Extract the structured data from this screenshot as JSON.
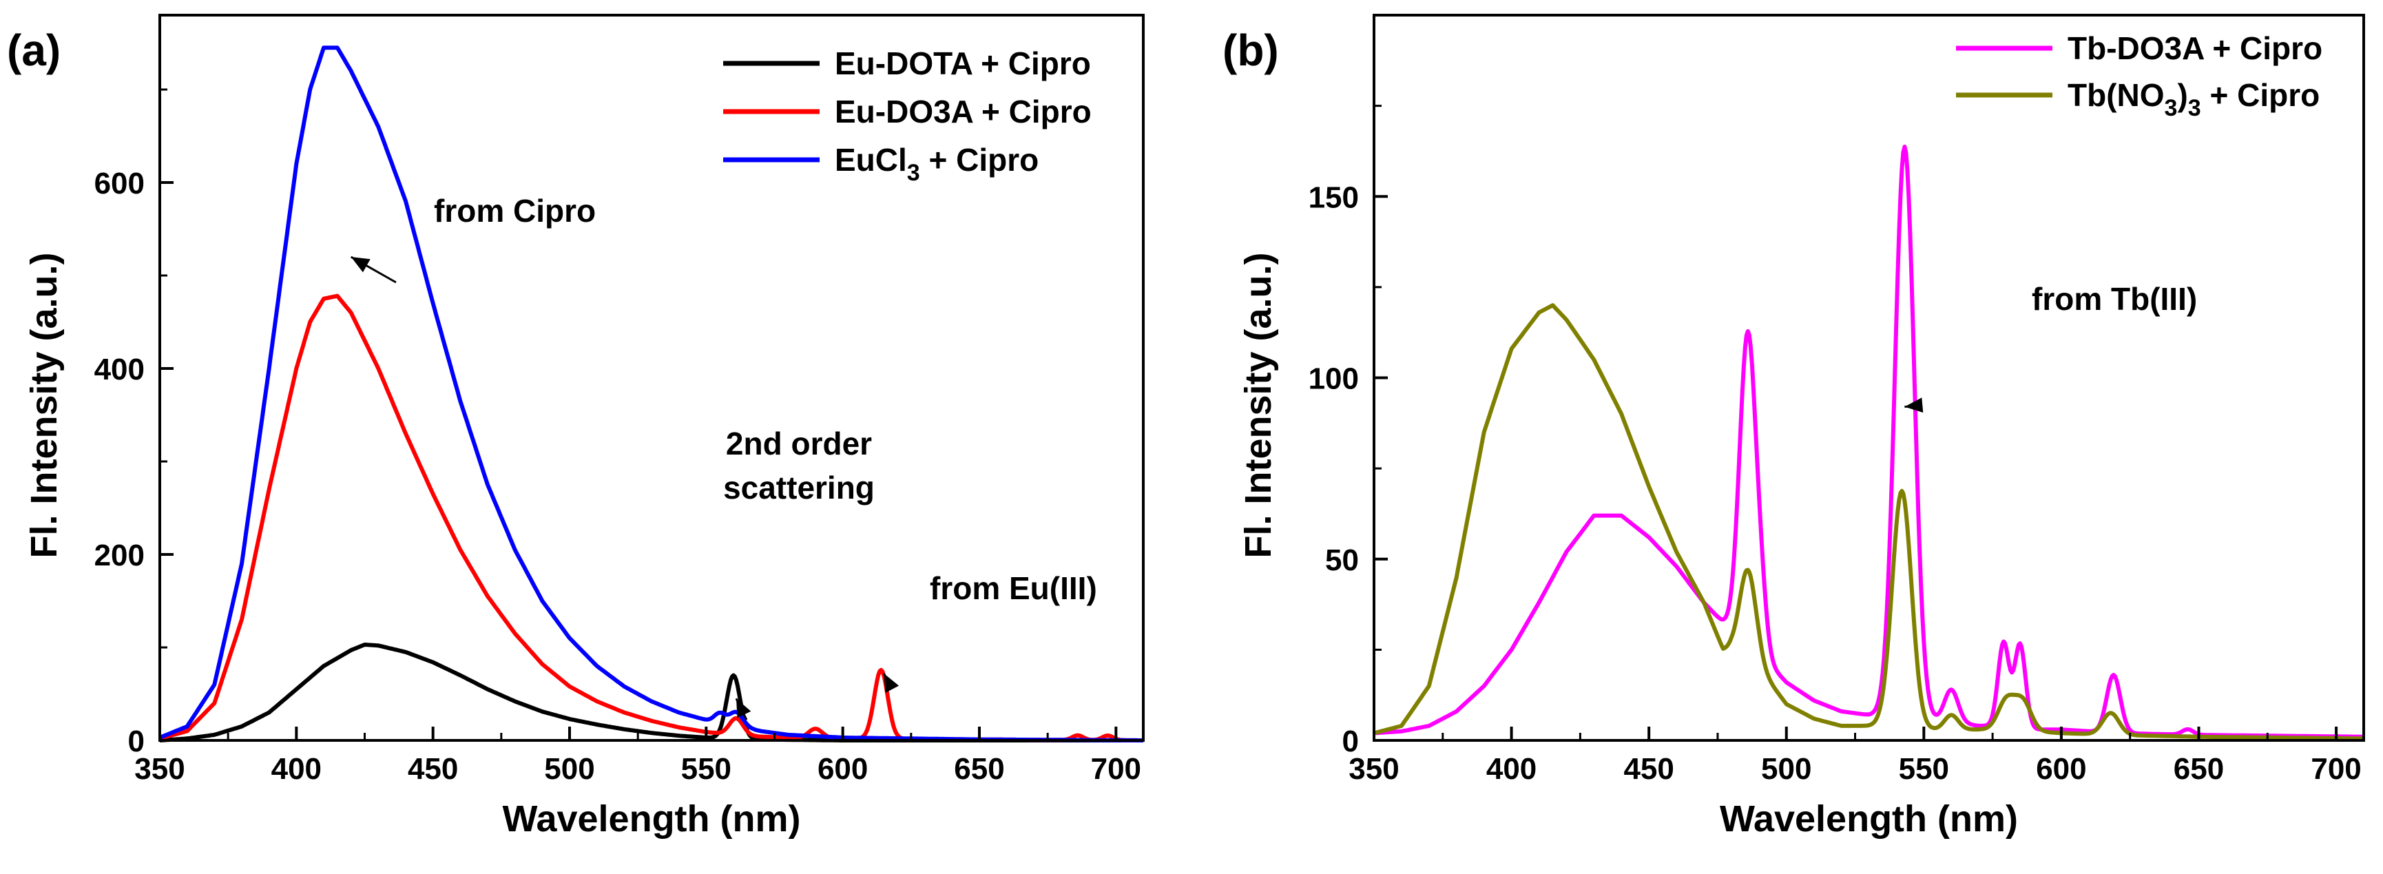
{
  "chart_data": [
    {
      "type": "line",
      "panel_label": "(a)",
      "xlabel": "Wavelength (nm)",
      "ylabel": "Fl. Intensity (a.u.)",
      "xlim": [
        350,
        710
      ],
      "ylim": [
        0,
        780
      ],
      "xticks": [
        "350",
        "400",
        "450",
        "500",
        "550",
        "600",
        "650",
        "700"
      ],
      "yticks": [
        "0",
        "200",
        "400",
        "600"
      ],
      "legend_position": "top-right",
      "legend": [
        {
          "text": "Eu-DOTA + Cipro",
          "color": "#000000"
        },
        {
          "text": "Eu-DO3A + Cipro",
          "color": "#ff0000"
        },
        {
          "text": "EuCl",
          "sub": "3",
          "rest": " + Cipro",
          "color": "#0000ff"
        }
      ],
      "annotations": [
        {
          "lines": [
            "from Cipro"
          ],
          "target": [
            420,
            520
          ]
        },
        {
          "lines": [
            "2nd order",
            "scattering"
          ],
          "target": [
            561,
            45
          ]
        },
        {
          "lines": [
            "from Eu(III)"
          ],
          "target": [
            615,
            72
          ]
        }
      ],
      "series": [
        {
          "name": "Eu-DOTA + Cipro",
          "color": "#000000",
          "base": [
            [
              350,
              0
            ],
            [
              360,
              2
            ],
            [
              370,
              6
            ],
            [
              380,
              15
            ],
            [
              390,
              30
            ],
            [
              400,
              55
            ],
            [
              410,
              80
            ],
            [
              420,
              97
            ],
            [
              425,
              103
            ],
            [
              430,
              102
            ],
            [
              440,
              95
            ],
            [
              450,
              84
            ],
            [
              460,
              70
            ],
            [
              470,
              55
            ],
            [
              480,
              42
            ],
            [
              490,
              31
            ],
            [
              500,
              23
            ],
            [
              510,
              17
            ],
            [
              520,
              12
            ],
            [
              530,
              8
            ],
            [
              540,
              5
            ],
            [
              550,
              3
            ],
            [
              560,
              2
            ],
            [
              570,
              1
            ],
            [
              600,
              0
            ],
            [
              710,
              0
            ]
          ],
          "peaks": [
            [
              560,
              68,
              2.5
            ]
          ]
        },
        {
          "name": "Eu-DO3A + Cipro",
          "color": "#ff0000",
          "base": [
            [
              350,
              2
            ],
            [
              360,
              10
            ],
            [
              370,
              40
            ],
            [
              380,
              130
            ],
            [
              390,
              270
            ],
            [
              400,
              400
            ],
            [
              405,
              450
            ],
            [
              410,
              475
            ],
            [
              415,
              478
            ],
            [
              420,
              460
            ],
            [
              430,
              400
            ],
            [
              440,
              330
            ],
            [
              450,
              265
            ],
            [
              460,
              205
            ],
            [
              470,
              155
            ],
            [
              480,
              115
            ],
            [
              490,
              82
            ],
            [
              500,
              58
            ],
            [
              510,
              42
            ],
            [
              520,
              30
            ],
            [
              530,
              21
            ],
            [
              540,
              14
            ],
            [
              550,
              9
            ],
            [
              560,
              6
            ],
            [
              570,
              4
            ],
            [
              580,
              3
            ],
            [
              600,
              2
            ],
            [
              650,
              1
            ],
            [
              710,
              0
            ]
          ],
          "peaks": [
            [
              561,
              18,
              2.5
            ],
            [
              590,
              10,
              2.5
            ],
            [
              614,
              74,
              2.5
            ],
            [
              686,
              5,
              2
            ],
            [
              697,
              5,
              2
            ]
          ]
        },
        {
          "name": "EuCl3 + Cipro",
          "color": "#0000ff",
          "base": [
            [
              350,
              3
            ],
            [
              360,
              15
            ],
            [
              370,
              60
            ],
            [
              380,
              190
            ],
            [
              390,
              400
            ],
            [
              400,
              620
            ],
            [
              405,
              700
            ],
            [
              410,
              745
            ],
            [
              415,
              745
            ],
            [
              420,
              720
            ],
            [
              430,
              660
            ],
            [
              440,
              580
            ],
            [
              450,
              470
            ],
            [
              460,
              365
            ],
            [
              470,
              275
            ],
            [
              480,
              205
            ],
            [
              490,
              150
            ],
            [
              500,
              110
            ],
            [
              510,
              80
            ],
            [
              520,
              58
            ],
            [
              530,
              42
            ],
            [
              540,
              30
            ],
            [
              550,
              22
            ],
            [
              560,
              16
            ],
            [
              570,
              10
            ],
            [
              580,
              6
            ],
            [
              600,
              3
            ],
            [
              650,
              1
            ],
            [
              710,
              0
            ]
          ],
          "peaks": [
            [
              555,
              10,
              2
            ],
            [
              561,
              15,
              2.5
            ]
          ]
        }
      ]
    },
    {
      "type": "line",
      "panel_label": "(b)",
      "xlabel": "Wavelength (nm)",
      "ylabel": "Fl. Intensity (a.u.)",
      "xlim": [
        350,
        710
      ],
      "ylim": [
        0,
        200
      ],
      "xticks": [
        "350",
        "400",
        "450",
        "500",
        "550",
        "600",
        "650",
        "700"
      ],
      "yticks": [
        "0",
        "50",
        "100",
        "150"
      ],
      "legend_position": "top-right",
      "legend": [
        {
          "text": "Tb-DO3A + Cipro",
          "color": "#ff00ff"
        },
        {
          "text": "Tb(NO",
          "sub": "3",
          "mid": ")",
          "sub2": "3",
          "rest": " + Cipro",
          "color": "#808000"
        }
      ],
      "annotations": [
        {
          "lines": [
            "from Tb(III)"
          ],
          "target": [
            543,
            92
          ]
        }
      ],
      "series": [
        {
          "name": "Tb-DO3A + Cipro",
          "color": "#ff00ff",
          "base": [
            [
              350,
              2
            ],
            [
              360,
              2.5
            ],
            [
              370,
              4
            ],
            [
              380,
              8
            ],
            [
              390,
              15
            ],
            [
              400,
              25
            ],
            [
              410,
              38
            ],
            [
              420,
              52
            ],
            [
              430,
              62
            ],
            [
              440,
              62
            ],
            [
              450,
              56
            ],
            [
              460,
              48
            ],
            [
              470,
              38
            ],
            [
              480,
              30
            ],
            [
              490,
              24
            ],
            [
              500,
              16
            ],
            [
              510,
              11
            ],
            [
              520,
              8
            ],
            [
              530,
              7
            ],
            [
              540,
              7
            ],
            [
              550,
              6
            ],
            [
              560,
              5
            ],
            [
              570,
              4
            ],
            [
              580,
              4
            ],
            [
              590,
              3
            ],
            [
              600,
              3
            ],
            [
              620,
              2
            ],
            [
              650,
              1.5
            ],
            [
              710,
              1
            ]
          ],
          "peaks": [
            [
              486,
              86,
              3
            ],
            [
              491,
              10,
              2
            ],
            [
              543,
              157,
              3.5
            ],
            [
              560,
              9,
              2.5
            ],
            [
              579,
              23,
              2
            ],
            [
              585,
              23,
              2
            ],
            [
              619,
              16,
              2.5
            ],
            [
              646,
              1.5,
              2
            ]
          ]
        },
        {
          "name": "Tb(NO3)3 + Cipro",
          "color": "#808000",
          "base": [
            [
              350,
              2
            ],
            [
              360,
              4
            ],
            [
              370,
              15
            ],
            [
              380,
              45
            ],
            [
              390,
              85
            ],
            [
              400,
              108
            ],
            [
              410,
              118
            ],
            [
              415,
              120
            ],
            [
              420,
              116
            ],
            [
              430,
              105
            ],
            [
              440,
              90
            ],
            [
              450,
              70
            ],
            [
              460,
              52
            ],
            [
              470,
              38
            ],
            [
              477,
              25
            ],
            [
              480,
              25
            ],
            [
              490,
              20
            ],
            [
              500,
              10
            ],
            [
              510,
              6
            ],
            [
              520,
              4
            ],
            [
              530,
              4
            ],
            [
              540,
              4
            ],
            [
              550,
              3
            ],
            [
              560,
              3
            ],
            [
              570,
              3
            ],
            [
              580,
              3
            ],
            [
              600,
              2
            ],
            [
              620,
              1.5
            ],
            [
              650,
              1
            ],
            [
              710,
              0.5
            ]
          ],
          "peaks": [
            [
              486,
              25,
              3
            ],
            [
              542,
              65,
              3.5
            ],
            [
              560,
              4,
              2.5
            ],
            [
              580,
              8,
              3
            ],
            [
              586,
              8,
              3
            ],
            [
              618,
              6,
              3
            ]
          ]
        }
      ]
    }
  ]
}
